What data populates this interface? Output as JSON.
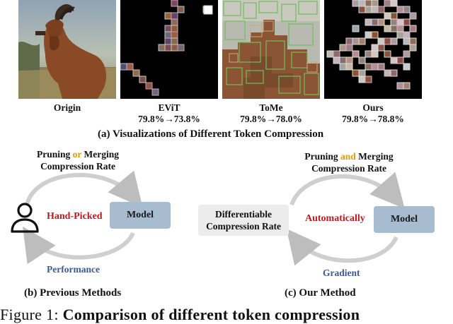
{
  "panels": [
    {
      "label": "Origin",
      "metric": ""
    },
    {
      "label": "EViT",
      "metric": "79.8%→73.8%"
    },
    {
      "label": "ToMe",
      "metric": "79.8%→78.0%"
    },
    {
      "label": "Ours",
      "metric": "79.8%→78.8%"
    }
  ],
  "subcaption_a": "(a) Visualizations of  Different Token Compression",
  "previous": {
    "title_pre": "Pruning ",
    "title_conj": "or",
    "title_post": " Merging",
    "title_line2": "Compression Rate",
    "hand_picked": "Hand-Picked",
    "model": "Model",
    "performance": "Performance",
    "subcaption": "(b) Previous Methods",
    "user_icon": "user-icon"
  },
  "ours": {
    "title_pre": "Pruning ",
    "title_conj": "and",
    "title_post": " Merging",
    "title_line2": "Compression Rate",
    "diff_line1": "Differentiable",
    "diff_line2": "Compression Rate",
    "automatically": "Automatically",
    "model": "Model",
    "gradient": "Gradient",
    "subcaption": "(c) Our Method"
  },
  "figure_caption": {
    "prefix": "Figure 1: ",
    "title": "Comparison of different token compression"
  },
  "colors": {
    "accent_conj": "#e0a100",
    "hand_picked": "#c0181c",
    "performance": "#3b5a9a",
    "model_box": "#a8bccf"
  }
}
